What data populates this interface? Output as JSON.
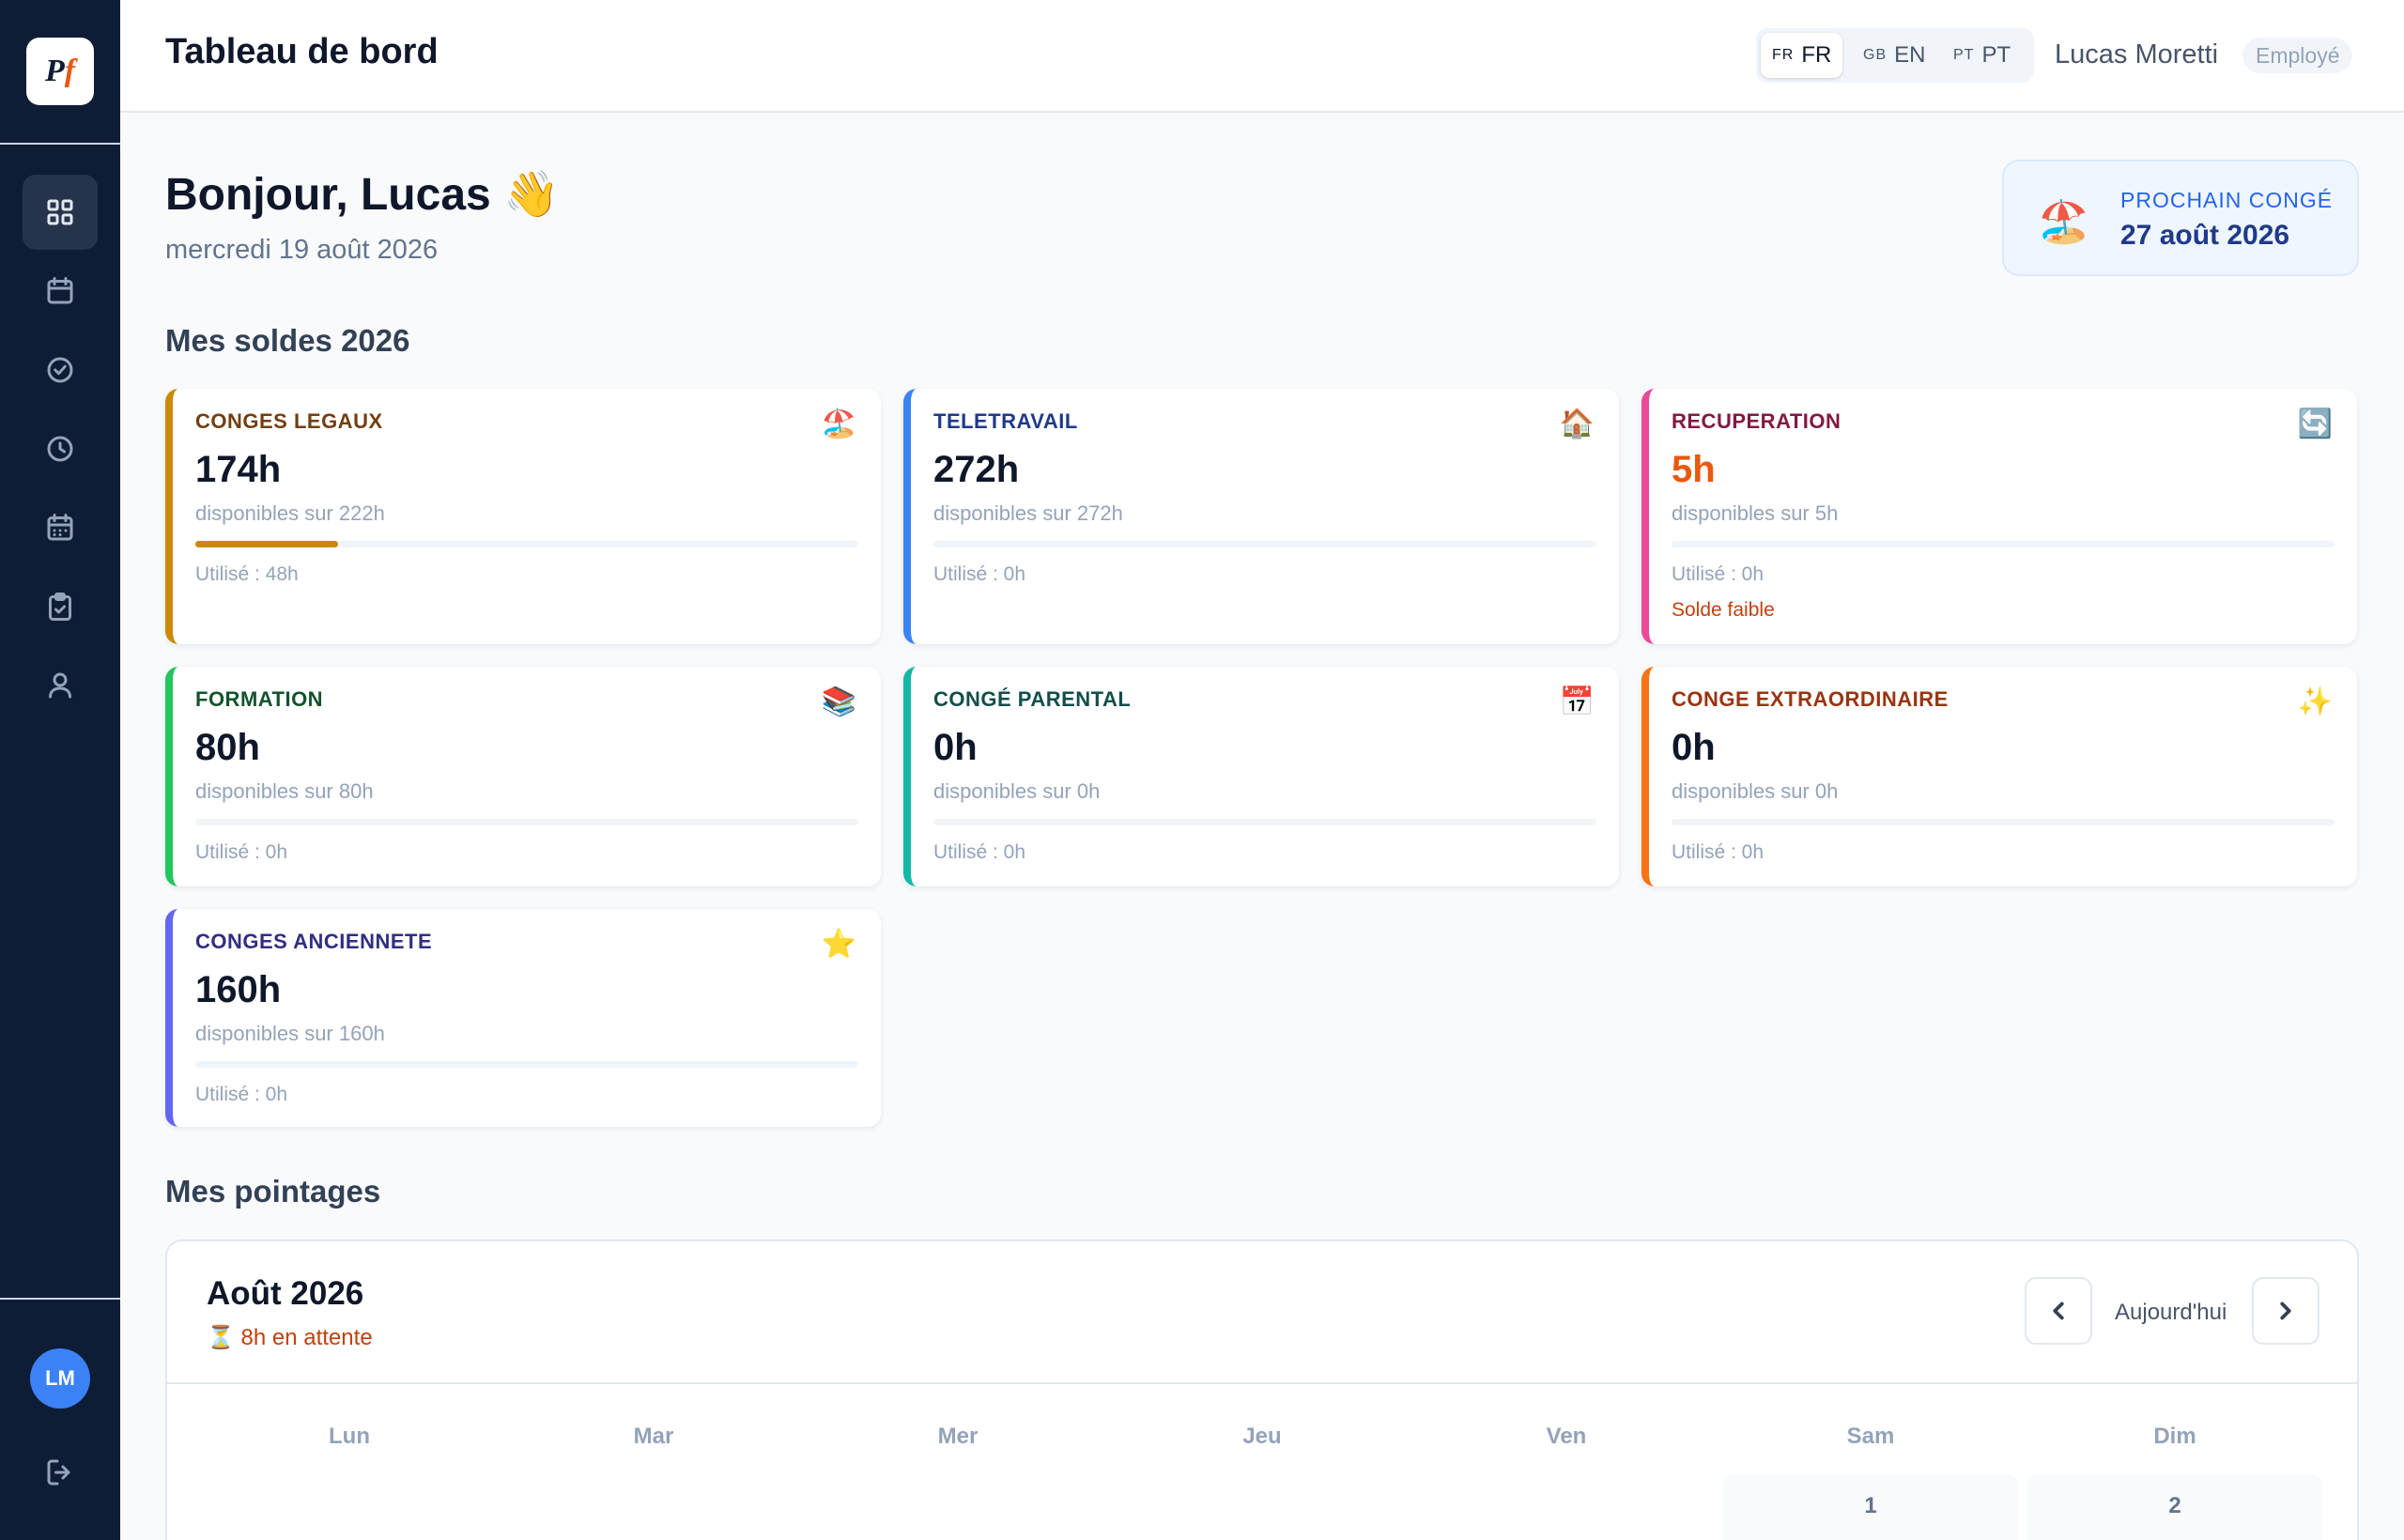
{
  "app": {
    "logo_text": "Pf"
  },
  "nav": [
    {
      "name": "dashboard",
      "icon": "grid-icon",
      "active": true
    },
    {
      "name": "calendar",
      "icon": "calendar-icon"
    },
    {
      "name": "approvals",
      "icon": "check-circle-icon"
    },
    {
      "name": "time",
      "icon": "clock-icon"
    },
    {
      "name": "planning",
      "icon": "calendar-grid-icon"
    },
    {
      "name": "requests",
      "icon": "clipboard-check-icon"
    },
    {
      "name": "profile",
      "icon": "user-icon"
    }
  ],
  "user": {
    "initials": "LM",
    "name": "Lucas Moretti",
    "role": "Employé"
  },
  "header": {
    "title": "Tableau de bord"
  },
  "languages": [
    {
      "code": "FR",
      "flag": "FR",
      "active": true
    },
    {
      "code": "EN",
      "flag": "GB"
    },
    {
      "code": "PT",
      "flag": "PT"
    }
  ],
  "greeting": {
    "text": "Bonjour, Lucas",
    "emoji": "👋",
    "date": "mercredi 19 août 2026"
  },
  "next_leave": {
    "label": "PROCHAIN CONGÉ",
    "date": "27 août 2026",
    "icon": "🏖️"
  },
  "balances_title": "Mes soldes 2026",
  "balances": [
    {
      "title": "CONGES LEGAUX",
      "icon": "🏖️",
      "value": "174h",
      "sub": "disponibles sur 222h",
      "used": "Utilisé : 48h",
      "used_fraction": 0.216,
      "color": "#ca8a04",
      "title_color": "#713f12"
    },
    {
      "title": "TELETRAVAIL",
      "icon": "🏠",
      "value": "272h",
      "sub": "disponibles sur 272h",
      "used": "Utilisé : 0h",
      "used_fraction": 0,
      "color": "#3b82f6",
      "title_color": "#1e3a8a"
    },
    {
      "title": "RECUPERATION",
      "icon": "🔄",
      "value": "5h",
      "sub": "disponibles sur 5h",
      "used": "Utilisé : 0h",
      "used_fraction": 0,
      "color": "#ec4899",
      "title_color": "#831843",
      "value_color": "#ea580c",
      "warning": "Solde faible"
    },
    {
      "title": "FORMATION",
      "icon": "📚",
      "value": "80h",
      "sub": "disponibles sur 80h",
      "used": "Utilisé : 0h",
      "used_fraction": 0,
      "color": "#22c55e",
      "title_color": "#14532d"
    },
    {
      "title": "CONGÉ PARENTAL",
      "icon": "📅",
      "value": "0h",
      "sub": "disponibles sur 0h",
      "used": "Utilisé : 0h",
      "used_fraction": 0,
      "color": "#14b8a6",
      "title_color": "#134e4a"
    },
    {
      "title": "CONGE EXTRAORDINAIRE",
      "icon": "✨",
      "value": "0h",
      "sub": "disponibles sur 0h",
      "used": "Utilisé : 0h",
      "used_fraction": 0,
      "color": "#f97316",
      "title_color": "#9a3412"
    },
    {
      "title": "CONGES ANCIENNETE",
      "icon": "⭐",
      "value": "160h",
      "sub": "disponibles sur 160h",
      "used": "Utilisé : 0h",
      "used_fraction": 0,
      "color": "#6366f1",
      "title_color": "#312e81"
    }
  ],
  "timesheet": {
    "section_title": "Mes pointages",
    "month": "Août 2026",
    "pending": "⏳ 8h en attente",
    "today_label": "Aujourd'hui",
    "weekdays": [
      "Lun",
      "Mar",
      "Mer",
      "Jeu",
      "Ven",
      "Sam",
      "Dim"
    ],
    "first_days": [
      "1",
      "2"
    ]
  }
}
